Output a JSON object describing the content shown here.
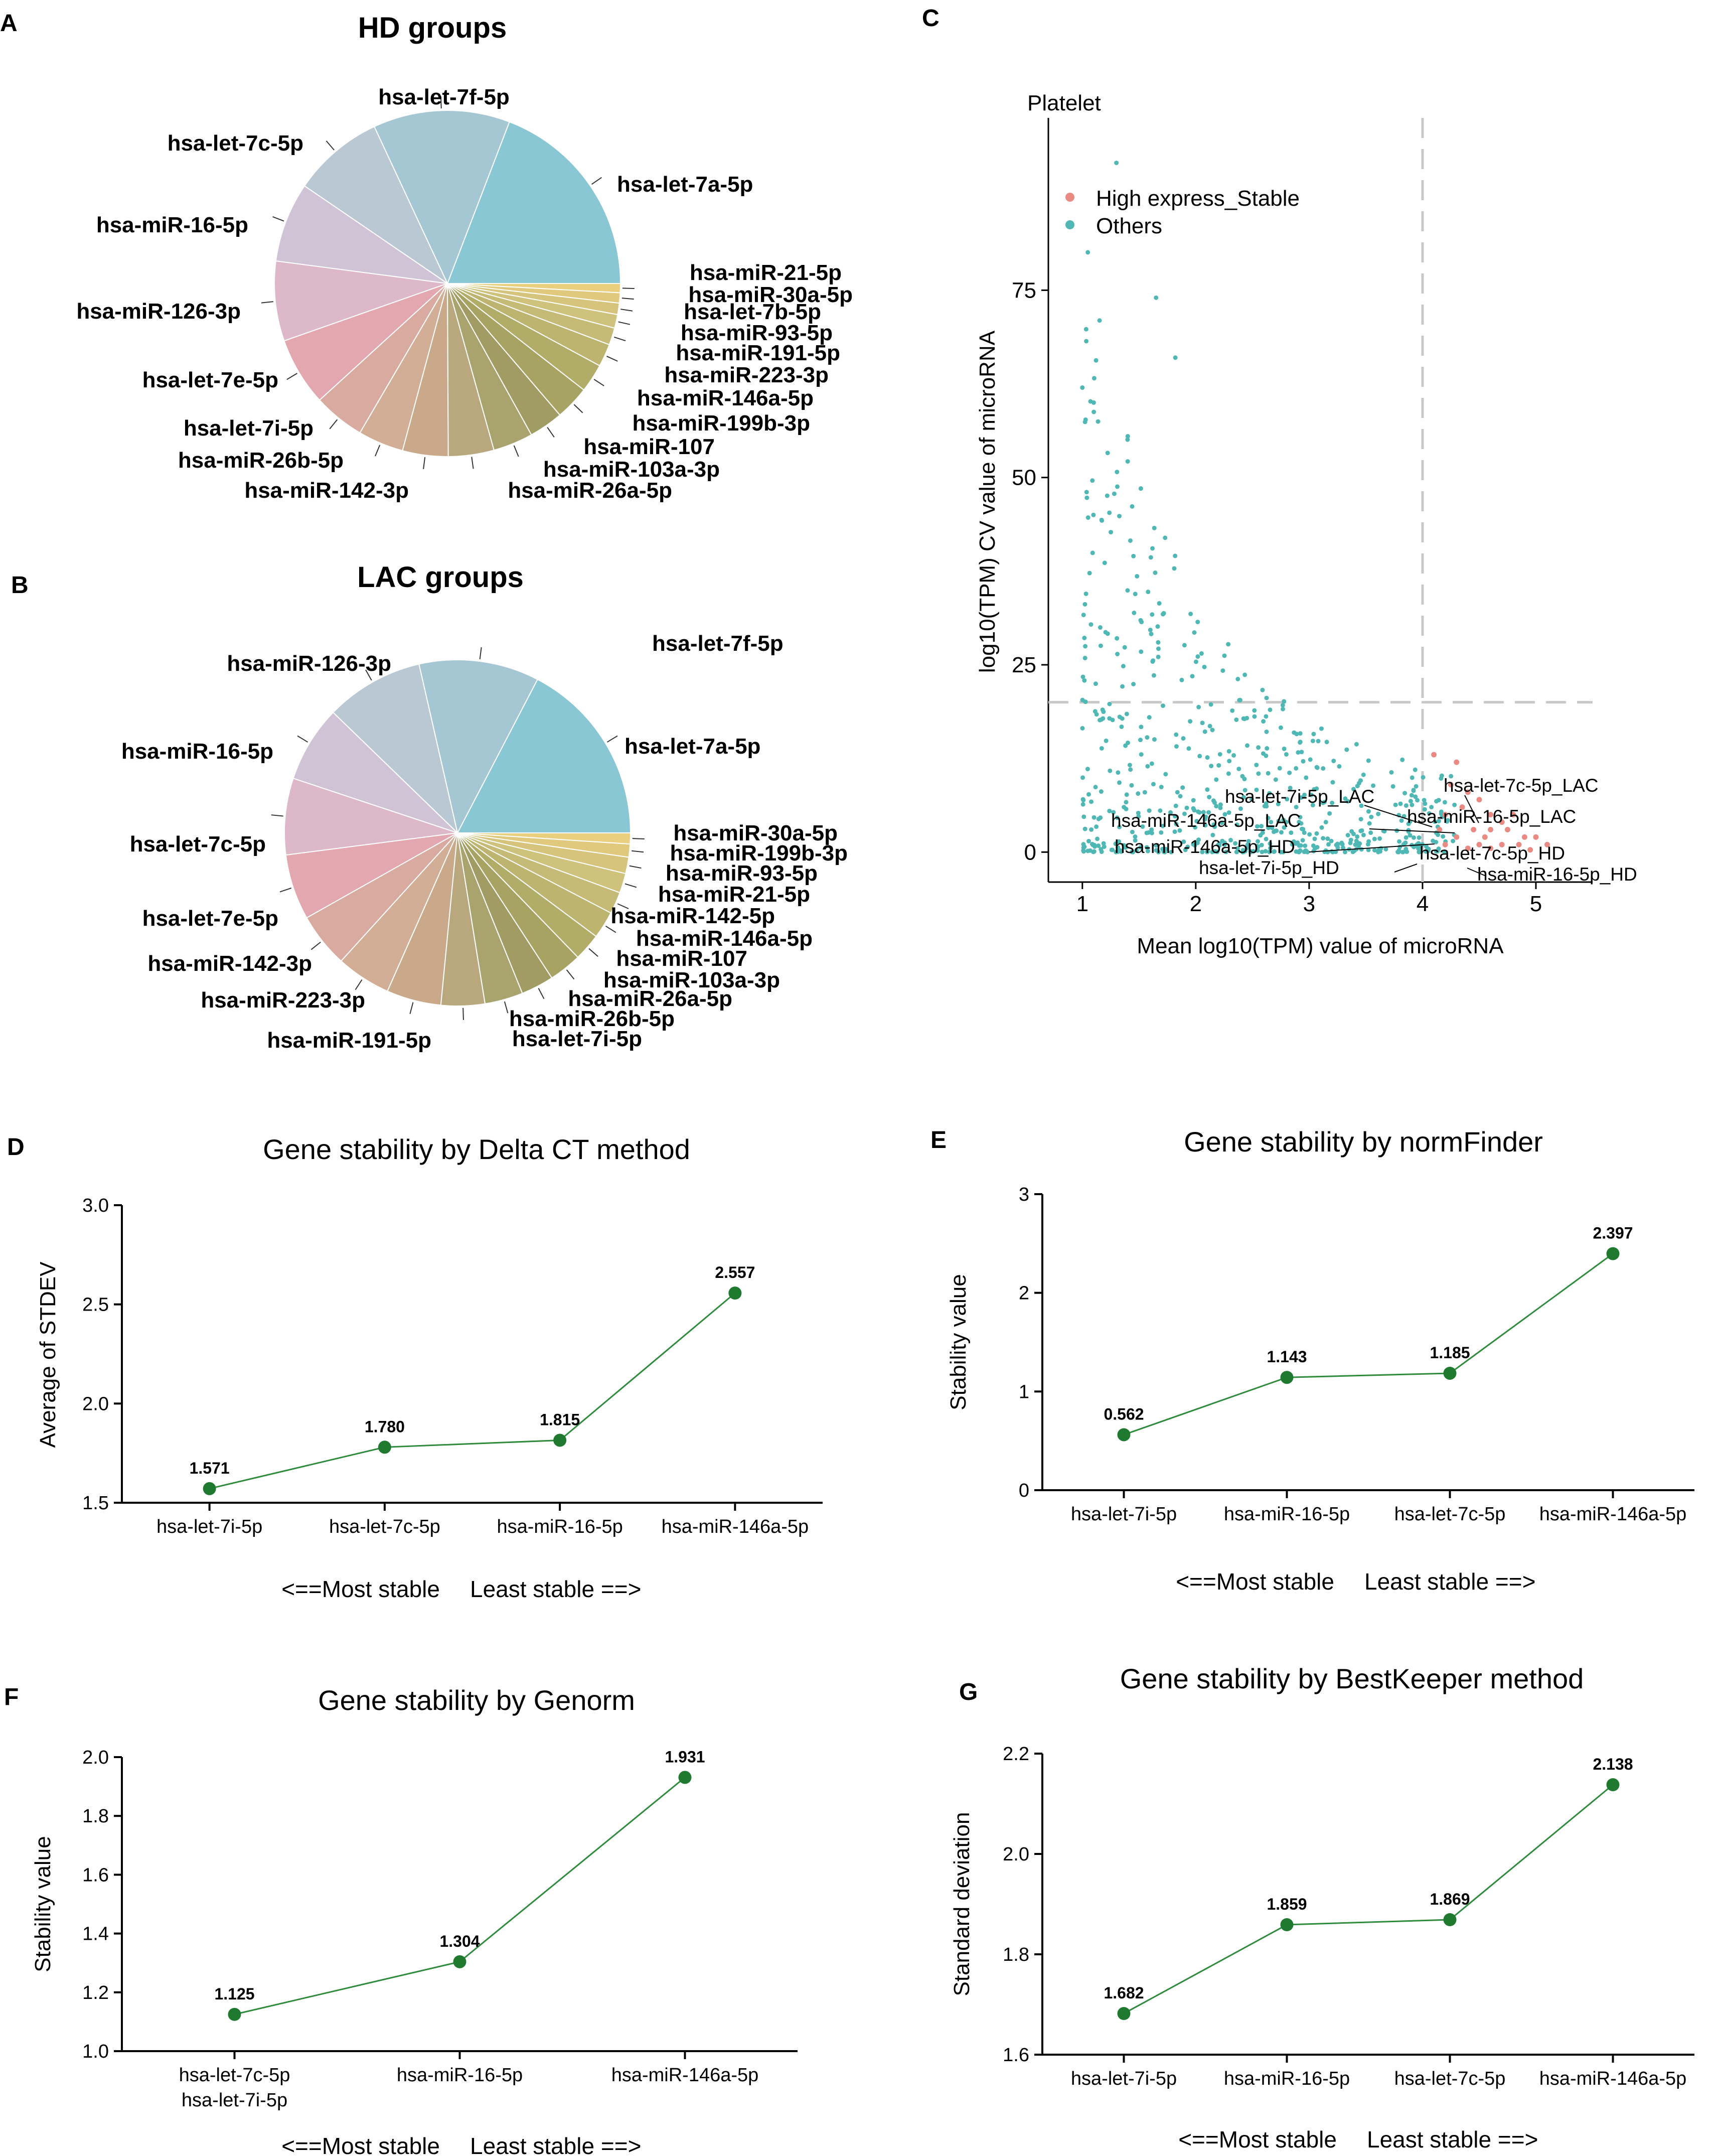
{
  "panel_letters": [
    "A",
    "B",
    "C",
    "D",
    "E",
    "F",
    "G"
  ],
  "chart_data": [
    {
      "panel": "A",
      "type": "pie",
      "title": "HD groups",
      "slices": [
        {
          "label": "hsa-let-7a-5p",
          "value": 18.0,
          "color": "#89c7d4"
        },
        {
          "label": "hsa-let-7f-5p",
          "value": 12.0,
          "color": "#a5c6d3"
        },
        {
          "label": "hsa-let-7c-5p",
          "value": 8.0,
          "color": "#b9c8d2"
        },
        {
          "label": "hsa-miR-16-5p",
          "value": 7.0,
          "color": "#cfc3d5"
        },
        {
          "label": "hsa-miR-126-3p",
          "value": 7.0,
          "color": "#ddb8c8"
        },
        {
          "label": "hsa-let-7e-5p",
          "value": 6.0,
          "color": "#e2a7af"
        },
        {
          "label": "hsa-let-7i-5p",
          "value": 4.5,
          "color": "#d8aaa0"
        },
        {
          "label": "hsa-miR-26b-5p",
          "value": 4.0,
          "color": "#d3ae97"
        },
        {
          "label": "hsa-miR-142-3p",
          "value": 4.0,
          "color": "#c9a98a"
        },
        {
          "label": "hsa-miR-26a-5p",
          "value": 4.0,
          "color": "#b9a77e"
        },
        {
          "label": "hsa-miR-103a-3p",
          "value": 3.5,
          "color": "#a9a46e"
        },
        {
          "label": "hsa-miR-107",
          "value": 3.0,
          "color": "#a09c63"
        },
        {
          "label": "hsa-miR-199b-3p",
          "value": 3.0,
          "color": "#a7a463"
        },
        {
          "label": "hsa-miR-146a-5p",
          "value": 2.5,
          "color": "#b1ad68"
        },
        {
          "label": "hsa-miR-223-3p",
          "value": 2.0,
          "color": "#bcb46f"
        },
        {
          "label": "hsa-miR-191-5p",
          "value": 1.5,
          "color": "#c5bb76"
        },
        {
          "label": "hsa-miR-93-5p",
          "value": 1.2,
          "color": "#cec27c"
        },
        {
          "label": "hsa-let-7b-5p",
          "value": 1.0,
          "color": "#d6c47c"
        },
        {
          "label": "hsa-miR-30a-5p",
          "value": 0.9,
          "color": "#e0c87c"
        },
        {
          "label": "hsa-miR-21-5p",
          "value": 0.8,
          "color": "#e9cf7e"
        }
      ]
    },
    {
      "panel": "B",
      "type": "pie",
      "title": "LAC groups",
      "slices": [
        {
          "label": "hsa-let-7a-5p",
          "value": 17.0,
          "color": "#89c7d4"
        },
        {
          "label": "hsa-let-7f-5p",
          "value": 11.0,
          "color": "#a5c6d3"
        },
        {
          "label": "hsa-miR-126-3p",
          "value": 9.0,
          "color": "#b9c8d2"
        },
        {
          "label": "hsa-miR-16-5p",
          "value": 7.0,
          "color": "#cfc3d5"
        },
        {
          "label": "hsa-let-7c-5p",
          "value": 7.0,
          "color": "#ddb8c8"
        },
        {
          "label": "hsa-let-7e-5p",
          "value": 6.0,
          "color": "#e2a7af"
        },
        {
          "label": "hsa-miR-142-3p",
          "value": 5.0,
          "color": "#d8aaa0"
        },
        {
          "label": "hsa-miR-223-3p",
          "value": 5.0,
          "color": "#d3ae97"
        },
        {
          "label": "hsa-miR-191-5p",
          "value": 5.0,
          "color": "#c9a98a"
        },
        {
          "label": "hsa-let-7i-5p",
          "value": 4.0,
          "color": "#b9a77e"
        },
        {
          "label": "hsa-miR-26b-5p",
          "value": 3.5,
          "color": "#a9a46e"
        },
        {
          "label": "hsa-miR-26a-5p",
          "value": 3.0,
          "color": "#a09c63"
        },
        {
          "label": "hsa-miR-103a-3p",
          "value": 3.0,
          "color": "#a7a463"
        },
        {
          "label": "hsa-miR-107",
          "value": 2.5,
          "color": "#b1ad68"
        },
        {
          "label": "hsa-miR-146a-5p",
          "value": 2.5,
          "color": "#bcb46f"
        },
        {
          "label": "hsa-miR-142-5p",
          "value": 2.0,
          "color": "#c5bb76"
        },
        {
          "label": "hsa-miR-21-5p",
          "value": 1.8,
          "color": "#cec27c"
        },
        {
          "label": "hsa-miR-93-5p",
          "value": 1.5,
          "color": "#d6c47c"
        },
        {
          "label": "hsa-miR-199b-3p",
          "value": 1.2,
          "color": "#e0c87c"
        },
        {
          "label": "hsa-miR-30a-5p",
          "value": 1.0,
          "color": "#e9cf7e"
        }
      ]
    },
    {
      "panel": "C",
      "type": "scatter",
      "title": "Platelet",
      "xlabel": "Mean log10(TPM) value of microRNA",
      "ylabel": "log10(TPM) CV value of microRNA",
      "xlim": [
        0.7,
        5.5
      ],
      "ylim": [
        -4,
        98
      ],
      "xticks": [
        1,
        2,
        3,
        4,
        5
      ],
      "yticks": [
        0,
        25,
        50,
        75
      ],
      "threshold_x": 4,
      "threshold_y": 20,
      "legend": [
        {
          "label": "High express_Stable",
          "color": "#ea8b83"
        },
        {
          "label": "Others",
          "color": "#4fb7b4"
        }
      ],
      "others_count": 620,
      "high_points": [
        [
          4.1,
          13
        ],
        [
          4.3,
          12
        ],
        [
          4.25,
          9
        ],
        [
          4.4,
          8
        ],
        [
          4.35,
          6
        ],
        [
          4.5,
          7
        ],
        [
          4.6,
          5
        ],
        [
          4.7,
          4
        ],
        [
          4.8,
          5
        ],
        [
          4.2,
          5
        ],
        [
          4.45,
          3
        ],
        [
          4.6,
          3
        ],
        [
          4.75,
          3
        ],
        [
          4.9,
          2
        ],
        [
          5.0,
          2
        ],
        [
          4.3,
          2
        ],
        [
          4.5,
          1
        ],
        [
          4.7,
          1
        ],
        [
          4.85,
          1
        ],
        [
          5.1,
          1
        ],
        [
          4.2,
          1
        ],
        [
          4.4,
          0.5
        ],
        [
          4.6,
          0.5
        ],
        [
          4.95,
          0.3
        ],
        [
          4.15,
          3
        ],
        [
          4.55,
          2
        ]
      ],
      "annotations": [
        {
          "text": "hsa-let-7c-5p_LAC",
          "x": 4.4,
          "y": 9
        },
        {
          "text": "hsa-let-7i-5p_LAC",
          "x": 3.2,
          "y": 7
        },
        {
          "text": "hsa-miR-16-5p_LAC",
          "x": 4.6,
          "y": 4
        },
        {
          "text": "hsa-miR-146a-5p_LAC",
          "x": 2.6,
          "y": 3.5
        },
        {
          "text": "hsa-miR-146a-5p_HD",
          "x": 2.8,
          "y": 0.5
        },
        {
          "text": "hsa-let-7c-5p_HD",
          "x": 4.5,
          "y": 0.4
        },
        {
          "text": "hsa-let-7i-5p_HD",
          "x": 3.6,
          "y": -2
        },
        {
          "text": "hsa-miR-16-5p_HD",
          "x": 4.7,
          "y": -2.5
        }
      ]
    },
    {
      "panel": "D",
      "type": "line",
      "title": "Gene stability by Delta CT method",
      "ylabel": "Average of STDEV",
      "categories": [
        "hsa-let-7i-5p",
        "hsa-let-7c-5p",
        "hsa-miR-16-5p",
        "hsa-miR-146a-5p"
      ],
      "values": [
        1.571,
        1.78,
        1.815,
        2.557
      ],
      "value_labels": [
        "1.571",
        "1.780",
        "1.815",
        "2.557"
      ],
      "ylim": [
        1.5,
        3.0
      ],
      "yticks": [
        "1.5",
        "2.0",
        "2.5",
        "3.0"
      ],
      "footer": [
        "<==Most stable",
        "Least stable ==>"
      ]
    },
    {
      "panel": "E",
      "type": "line",
      "title": "Gene stability by normFinder",
      "ylabel": "Stability value",
      "categories": [
        "hsa-let-7i-5p",
        "hsa-miR-16-5p",
        "hsa-let-7c-5p",
        "hsa-miR-146a-5p"
      ],
      "values": [
        0.562,
        1.143,
        1.185,
        2.397
      ],
      "value_labels": [
        "0.562",
        "1.143",
        "1.185",
        "2.397"
      ],
      "ylim": [
        0,
        3
      ],
      "yticks": [
        "0",
        "1",
        "2",
        "3"
      ],
      "footer": [
        "<==Most stable",
        "Least stable ==>"
      ]
    },
    {
      "panel": "F",
      "type": "line",
      "title": "Gene stability by Genorm",
      "ylabel": "Stability value",
      "categories": [
        "hsa-let-7c-5p\nhsa-let-7i-5p",
        "hsa-miR-16-5p",
        "hsa-miR-146a-5p"
      ],
      "values": [
        1.125,
        1.304,
        1.931
      ],
      "value_labels": [
        "1.125",
        "1.304",
        "1.931"
      ],
      "ylim": [
        1.0,
        2.0
      ],
      "yticks": [
        "1.0",
        "1.2",
        "1.4",
        "1.6",
        "1.8",
        "2.0"
      ],
      "footer": [
        "<==Most stable",
        "Least stable ==>"
      ]
    },
    {
      "panel": "G",
      "type": "line",
      "title": "Gene stability by BestKeeper method",
      "ylabel": "Standard deviation",
      "categories": [
        "hsa-let-7i-5p",
        "hsa-miR-16-5p",
        "hsa-let-7c-5p",
        "hsa-miR-146a-5p"
      ],
      "values": [
        1.682,
        1.859,
        1.869,
        2.138
      ],
      "value_labels": [
        "1.682",
        "1.859",
        "1.869",
        "2.138"
      ],
      "ylim": [
        1.6,
        2.2
      ],
      "yticks": [
        "1.6",
        "1.8",
        "2.0",
        "2.2"
      ],
      "footer": [
        "<==Most stable",
        "Least stable ==>"
      ]
    }
  ],
  "colors": {
    "line": "#2e8b3c",
    "marker": "#1f7a30",
    "axis": "#000000",
    "guide": "#c8c8c8"
  }
}
